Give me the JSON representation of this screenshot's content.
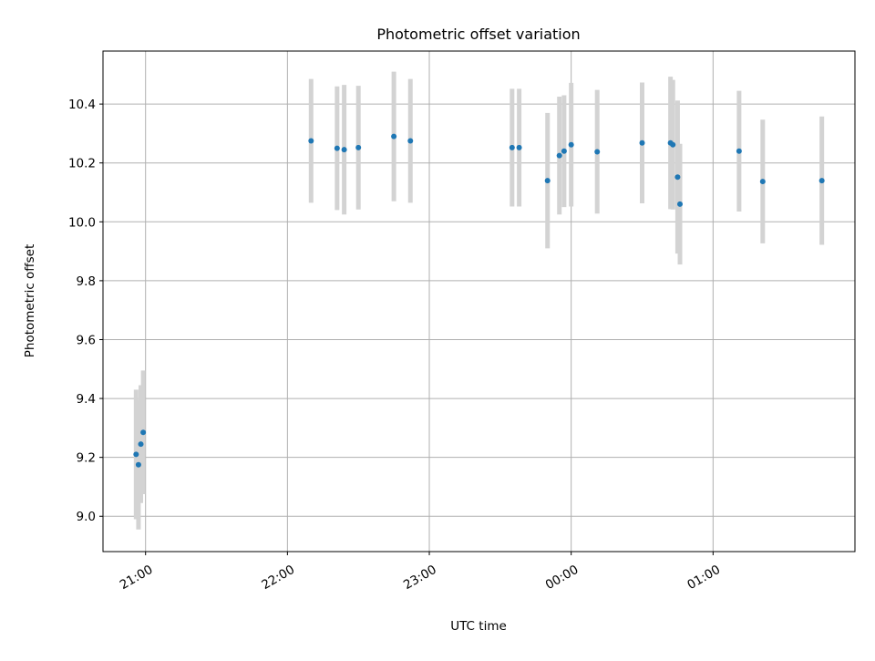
{
  "chart_data": {
    "type": "scatter",
    "title": "Photometric offset variation",
    "xlabel": "UTC time",
    "ylabel": "Photometric offset",
    "x_axis": "time",
    "xlim": [
      "20:42",
      "26:00"
    ],
    "ylim": [
      8.88,
      10.58
    ],
    "x_ticks": [
      {
        "time": "21:00",
        "label": "21:00"
      },
      {
        "time": "22:00",
        "label": "22:00"
      },
      {
        "time": "23:00",
        "label": "23:00"
      },
      {
        "time": "24:00",
        "label": "00:00"
      },
      {
        "time": "25:00",
        "label": "01:00"
      }
    ],
    "y_ticks": [
      {
        "value": 9.0,
        "label": "9.0"
      },
      {
        "value": 9.2,
        "label": "9.2"
      },
      {
        "value": 9.4,
        "label": "9.4"
      },
      {
        "value": 9.6,
        "label": "9.6"
      },
      {
        "value": 9.8,
        "label": "9.8"
      },
      {
        "value": 10.0,
        "label": "10.0"
      },
      {
        "value": 10.2,
        "label": "10.2"
      },
      {
        "value": 10.4,
        "label": "10.4"
      }
    ],
    "grid": true,
    "marker_color": "#1f77b4",
    "errorbar_color": "#d3d3d3",
    "points": [
      {
        "time": "20:56",
        "y": 9.21,
        "err": 0.22
      },
      {
        "time": "20:57",
        "y": 9.175,
        "err": 0.22
      },
      {
        "time": "20:58",
        "y": 9.245,
        "err": 0.2
      },
      {
        "time": "20:59",
        "y": 9.285,
        "err": 0.21
      },
      {
        "time": "22:10",
        "y": 10.275,
        "err": 0.21
      },
      {
        "time": "22:21",
        "y": 10.25,
        "err": 0.21
      },
      {
        "time": "22:24",
        "y": 10.245,
        "err": 0.22
      },
      {
        "time": "22:30",
        "y": 10.252,
        "err": 0.21
      },
      {
        "time": "22:45",
        "y": 10.29,
        "err": 0.22
      },
      {
        "time": "22:52",
        "y": 10.275,
        "err": 0.21
      },
      {
        "time": "23:35",
        "y": 10.252,
        "err": 0.2
      },
      {
        "time": "23:38",
        "y": 10.252,
        "err": 0.2
      },
      {
        "time": "23:50",
        "y": 10.14,
        "err": 0.23
      },
      {
        "time": "23:55",
        "y": 10.225,
        "err": 0.2
      },
      {
        "time": "23:57",
        "y": 10.24,
        "err": 0.19
      },
      {
        "time": "24:00",
        "y": 10.262,
        "err": 0.21
      },
      {
        "time": "24:11",
        "y": 10.238,
        "err": 0.21
      },
      {
        "time": "24:30",
        "y": 10.268,
        "err": 0.205
      },
      {
        "time": "24:42",
        "y": 10.268,
        "err": 0.225
      },
      {
        "time": "24:43",
        "y": 10.262,
        "err": 0.22
      },
      {
        "time": "24:45",
        "y": 10.152,
        "err": 0.26
      },
      {
        "time": "24:46",
        "y": 10.06,
        "err": 0.205
      },
      {
        "time": "25:11",
        "y": 10.24,
        "err": 0.205
      },
      {
        "time": "25:21",
        "y": 10.137,
        "err": 0.21
      },
      {
        "time": "25:46",
        "y": 10.14,
        "err": 0.218
      }
    ]
  }
}
